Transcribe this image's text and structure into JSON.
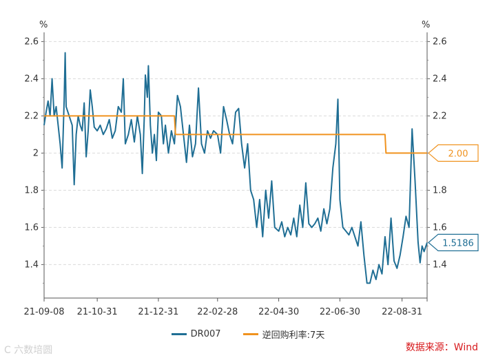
{
  "chart_data": {
    "type": "line",
    "x_ticks": [
      "21-09-08",
      "21-10-31",
      "21-12-31",
      "22-02-28",
      "22-04-30",
      "22-06-30",
      "22-08-31"
    ],
    "y_left": {
      "unit": "%",
      "ticks": [
        "2.6",
        "2.4",
        "2.2",
        "2",
        "1.8",
        "1.6",
        "1.4"
      ],
      "min": 1.22,
      "max": 2.62
    },
    "y_right": {
      "unit": "%",
      "ticks": [
        "2.6",
        "2.4",
        "2.2",
        "2",
        "1.8",
        "1.6",
        "1.4"
      ]
    },
    "x_range": [
      "2021-09-08",
      "2022-09-25"
    ],
    "grid": "horizontal dashed",
    "legend_position": "bottom",
    "series": [
      {
        "name": "DR007",
        "color": "#1f6e94",
        "points": [
          [
            "2021-09-08",
            2.15
          ],
          [
            "2021-09-10",
            2.22
          ],
          [
            "2021-09-12",
            2.28
          ],
          [
            "2021-09-14",
            2.2
          ],
          [
            "2021-09-16",
            2.4
          ],
          [
            "2021-09-18",
            2.2
          ],
          [
            "2021-09-20",
            2.25
          ],
          [
            "2021-09-22",
            2.15
          ],
          [
            "2021-09-24",
            2.05
          ],
          [
            "2021-09-26",
            1.92
          ],
          [
            "2021-09-28",
            2.28
          ],
          [
            "2021-09-29",
            2.54
          ],
          [
            "2021-09-30",
            2.25
          ],
          [
            "2021-10-03",
            2.2
          ],
          [
            "2021-10-06",
            2.15
          ],
          [
            "2021-10-08",
            1.83
          ],
          [
            "2021-10-10",
            2.1
          ],
          [
            "2021-10-12",
            2.2
          ],
          [
            "2021-10-14",
            2.15
          ],
          [
            "2021-10-16",
            2.12
          ],
          [
            "2021-10-18",
            2.27
          ],
          [
            "2021-10-20",
            1.98
          ],
          [
            "2021-10-22",
            2.12
          ],
          [
            "2021-10-24",
            2.34
          ],
          [
            "2021-10-26",
            2.25
          ],
          [
            "2021-10-28",
            2.14
          ],
          [
            "2021-10-31",
            2.12
          ],
          [
            "2021-11-03",
            2.15
          ],
          [
            "2021-11-06",
            2.1
          ],
          [
            "2021-11-09",
            2.13
          ],
          [
            "2021-11-12",
            2.18
          ],
          [
            "2021-11-15",
            2.08
          ],
          [
            "2021-11-18",
            2.12
          ],
          [
            "2021-11-21",
            2.25
          ],
          [
            "2021-11-24",
            2.22
          ],
          [
            "2021-11-26",
            2.4
          ],
          [
            "2021-11-28",
            2.05
          ],
          [
            "2021-12-01",
            2.1
          ],
          [
            "2021-12-04",
            2.18
          ],
          [
            "2021-12-07",
            2.06
          ],
          [
            "2021-12-10",
            2.2
          ],
          [
            "2021-12-13",
            2.1
          ],
          [
            "2021-12-15",
            1.89
          ],
          [
            "2021-12-17",
            2.2
          ],
          [
            "2021-12-18",
            2.42
          ],
          [
            "2021-12-20",
            2.3
          ],
          [
            "2021-12-21",
            2.47
          ],
          [
            "2021-12-23",
            2.15
          ],
          [
            "2021-12-25",
            2.0
          ],
          [
            "2021-12-27",
            2.1
          ],
          [
            "2021-12-29",
            1.96
          ],
          [
            "2021-12-31",
            2.22
          ],
          [
            "2022-01-03",
            2.2
          ],
          [
            "2022-01-05",
            2.05
          ],
          [
            "2022-01-07",
            2.15
          ],
          [
            "2022-01-10",
            2.0
          ],
          [
            "2022-01-13",
            2.12
          ],
          [
            "2022-01-16",
            2.05
          ],
          [
            "2022-01-19",
            2.31
          ],
          [
            "2022-01-22",
            2.25
          ],
          [
            "2022-01-25",
            2.1
          ],
          [
            "2022-01-28",
            1.95
          ],
          [
            "2022-01-31",
            2.15
          ],
          [
            "2022-02-03",
            1.98
          ],
          [
            "2022-02-06",
            2.05
          ],
          [
            "2022-02-09",
            2.35
          ],
          [
            "2022-02-12",
            2.05
          ],
          [
            "2022-02-15",
            2.0
          ],
          [
            "2022-02-18",
            2.12
          ],
          [
            "2022-02-21",
            2.08
          ],
          [
            "2022-02-24",
            2.12
          ],
          [
            "2022-02-28",
            2.1
          ],
          [
            "2022-03-03",
            2.0
          ],
          [
            "2022-03-06",
            2.25
          ],
          [
            "2022-03-09",
            2.18
          ],
          [
            "2022-03-12",
            2.1
          ],
          [
            "2022-03-15",
            2.05
          ],
          [
            "2022-03-18",
            2.22
          ],
          [
            "2022-03-21",
            2.24
          ],
          [
            "2022-03-24",
            2.05
          ],
          [
            "2022-03-27",
            1.92
          ],
          [
            "2022-03-30",
            2.05
          ],
          [
            "2022-04-02",
            1.8
          ],
          [
            "2022-04-05",
            1.75
          ],
          [
            "2022-04-08",
            1.6
          ],
          [
            "2022-04-11",
            1.75
          ],
          [
            "2022-04-14",
            1.55
          ],
          [
            "2022-04-17",
            1.8
          ],
          [
            "2022-04-20",
            1.65
          ],
          [
            "2022-04-23",
            1.85
          ],
          [
            "2022-04-26",
            1.6
          ],
          [
            "2022-04-30",
            1.58
          ],
          [
            "2022-05-03",
            1.63
          ],
          [
            "2022-05-06",
            1.55
          ],
          [
            "2022-05-09",
            1.6
          ],
          [
            "2022-05-12",
            1.56
          ],
          [
            "2022-05-15",
            1.65
          ],
          [
            "2022-05-18",
            1.55
          ],
          [
            "2022-05-21",
            1.72
          ],
          [
            "2022-05-24",
            1.6
          ],
          [
            "2022-05-27",
            1.84
          ],
          [
            "2022-05-30",
            1.62
          ],
          [
            "2022-06-02",
            1.6
          ],
          [
            "2022-06-05",
            1.62
          ],
          [
            "2022-06-08",
            1.65
          ],
          [
            "2022-06-11",
            1.58
          ],
          [
            "2022-06-14",
            1.7
          ],
          [
            "2022-06-17",
            1.62
          ],
          [
            "2022-06-20",
            1.7
          ],
          [
            "2022-06-23",
            1.92
          ],
          [
            "2022-06-26",
            2.05
          ],
          [
            "2022-06-28",
            2.29
          ],
          [
            "2022-06-30",
            1.75
          ],
          [
            "2022-07-03",
            1.6
          ],
          [
            "2022-07-06",
            1.58
          ],
          [
            "2022-07-09",
            1.56
          ],
          [
            "2022-07-12",
            1.6
          ],
          [
            "2022-07-15",
            1.55
          ],
          [
            "2022-07-18",
            1.5
          ],
          [
            "2022-07-21",
            1.63
          ],
          [
            "2022-07-24",
            1.45
          ],
          [
            "2022-07-27",
            1.3
          ],
          [
            "2022-07-30",
            1.3
          ],
          [
            "2022-08-02",
            1.37
          ],
          [
            "2022-08-05",
            1.32
          ],
          [
            "2022-08-08",
            1.4
          ],
          [
            "2022-08-11",
            1.35
          ],
          [
            "2022-08-14",
            1.55
          ],
          [
            "2022-08-17",
            1.4
          ],
          [
            "2022-08-20",
            1.65
          ],
          [
            "2022-08-23",
            1.42
          ],
          [
            "2022-08-26",
            1.38
          ],
          [
            "2022-08-29",
            1.45
          ],
          [
            "2022-09-01",
            1.55
          ],
          [
            "2022-09-04",
            1.66
          ],
          [
            "2022-09-07",
            1.6
          ],
          [
            "2022-09-10",
            2.13
          ],
          [
            "2022-09-13",
            1.85
          ],
          [
            "2022-09-16",
            1.52
          ],
          [
            "2022-09-18",
            1.41
          ],
          [
            "2022-09-20",
            1.5
          ],
          [
            "2022-09-22",
            1.47
          ],
          [
            "2022-09-25",
            1.5186
          ]
        ]
      },
      {
        "name": "逆回购利率:7天",
        "color": "#f0921e",
        "points": [
          [
            "2021-09-08",
            2.2
          ],
          [
            "2022-01-16",
            2.2
          ],
          [
            "2022-01-17",
            2.1
          ],
          [
            "2022-08-14",
            2.1
          ],
          [
            "2022-08-15",
            2.0
          ],
          [
            "2022-09-25",
            2.0
          ]
        ]
      }
    ],
    "annotations": [
      {
        "series": "逆回购利率:7天",
        "value": 2.0,
        "label": "2.00",
        "color": "#f0921e"
      },
      {
        "series": "DR007",
        "value": 1.5186,
        "label": "1.5186",
        "color": "#1f6e94"
      }
    ]
  },
  "source_label": "数据来源：Wind",
  "watermark": "C 六数培圆"
}
